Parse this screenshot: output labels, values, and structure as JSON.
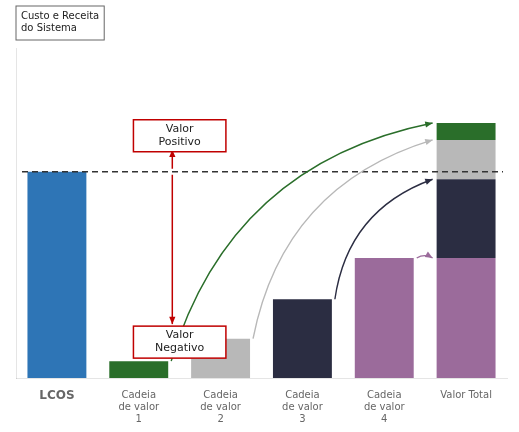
{
  "chart_data": {
    "type": "bar",
    "categories": [
      "LCOS",
      "Cadeia\nde valor\n1",
      "Cadeia\nde valor\n2",
      "Cadeia\nde valor\n3",
      "Cadeia\nde valor\n4",
      "Valor Total"
    ],
    "series": [
      {
        "values": [
          5.5,
          0.45,
          1.05,
          2.1,
          3.2,
          3.2
        ],
        "colors": [
          "#2e75b6",
          "#2a6e2a",
          "#b8b8b8",
          "#2b2d42",
          "#9b6b9b",
          "#9b6b9b"
        ]
      },
      {
        "values": [
          null,
          null,
          null,
          null,
          null,
          2.1
        ],
        "color": "#2b2d42"
      },
      {
        "values": [
          null,
          null,
          null,
          null,
          null,
          1.05
        ],
        "color": "#b8b8b8"
      },
      {
        "values": [
          null,
          null,
          null,
          null,
          null,
          0.45
        ],
        "color": "#2a6e2a"
      }
    ],
    "stacked": true,
    "ylim": [
      0,
      8.8
    ],
    "yticks": [],
    "grid": false,
    "tick_labels": "x",
    "ylabel": "Custo e Receita\ndo Sistema",
    "dashed_line_y": 5.5,
    "annotations": [
      {
        "text": "Valor\nPositivo",
        "color": "#c00000"
      },
      {
        "text": "Valor\nNegativo",
        "color": "#c00000"
      }
    ]
  }
}
